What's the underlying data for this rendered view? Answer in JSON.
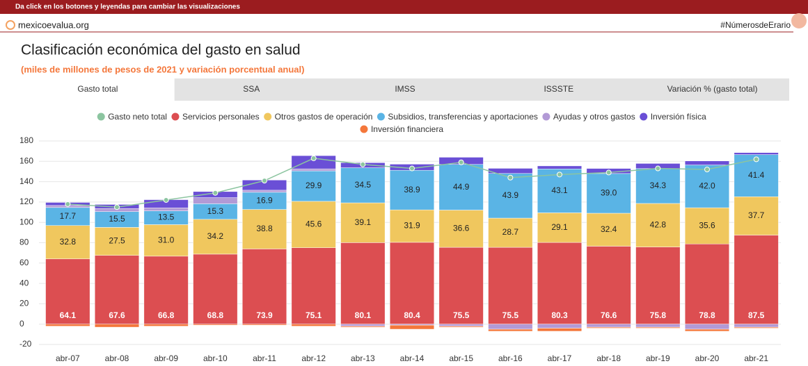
{
  "banner": "Da click en los botones y leyendas para cambiar las visualizaciones",
  "site": "mexicoevalua.org",
  "hashtag": "#NúmerosdeErario",
  "tabs": [
    "Gasto total",
    "SSA",
    "IMSS",
    "ISSSTE",
    "Variación % (gasto total)"
  ],
  "chart_data": {
    "type": "bar",
    "stacked": true,
    "title": "Clasificación económica del gasto en salud",
    "subtitle": "(miles de millones de pesos de 2021 y variación porcentual anual)",
    "categories": [
      "abr-07",
      "abr-08",
      "abr-09",
      "abr-10",
      "abr-11",
      "abr-12",
      "abr-13",
      "abr-14",
      "abr-15",
      "abr-16",
      "abr-17",
      "abr-18",
      "abr-19",
      "abr-20",
      "abr-21"
    ],
    "ylim": [
      -20,
      180
    ],
    "yticks": [
      -20,
      0,
      20,
      40,
      60,
      80,
      100,
      120,
      140,
      160,
      180
    ],
    "grid": true,
    "legend": "top",
    "series": [
      {
        "name": "Gasto neto total",
        "type": "line",
        "color": "#8cc5a0",
        "values": [
          118,
          115,
          122,
          129,
          141,
          163,
          157,
          153,
          159,
          144,
          147,
          149,
          153,
          152,
          162
        ]
      },
      {
        "name": "Servicios personales",
        "color": "#dc4e51",
        "values": [
          64.1,
          67.6,
          66.8,
          68.8,
          73.9,
          75.1,
          80.1,
          80.4,
          75.5,
          75.5,
          80.3,
          76.6,
          75.8,
          78.8,
          87.5
        ],
        "value_labels": [
          "64.1",
          "67.6",
          "66.8",
          "68.8",
          "73.9",
          "75.1",
          "80.1",
          "80.4",
          "75.5",
          "75.5",
          "80.3",
          "76.6",
          "75.8",
          "78.8",
          "87.5"
        ]
      },
      {
        "name": "Otros gastos de operación",
        "color": "#f0c75e",
        "values": [
          32.8,
          27.5,
          31.0,
          34.2,
          38.8,
          45.6,
          39.1,
          31.9,
          36.6,
          28.7,
          29.1,
          32.4,
          42.8,
          35.6,
          37.7
        ],
        "value_labels": [
          "32.8",
          "27.5",
          "31.0",
          "34.2",
          "38.8",
          "45.6",
          "39.1",
          "31.9",
          "36.6",
          "28.7",
          "29.1",
          "32.4",
          "42.8",
          "35.6",
          "37.7"
        ]
      },
      {
        "name": "Subsidios, transferencias y aportaciones",
        "color": "#5ab4e5",
        "values": [
          17.7,
          15.5,
          13.5,
          15.3,
          16.9,
          29.9,
          34.5,
          38.9,
          44.9,
          43.9,
          43.1,
          39.0,
          34.3,
          42.0,
          41.4
        ],
        "value_labels": [
          "17.7",
          "15.5",
          "13.5",
          "15.3",
          "16.9",
          "29.9",
          "34.5",
          "38.9",
          "44.9",
          "43.9",
          "43.1",
          "39.0",
          "34.3",
          "42.0",
          "41.4"
        ]
      },
      {
        "name": "Ayudas y otros gastos",
        "color": "#b29ad6",
        "values": [
          2,
          3,
          3,
          6,
          2,
          2,
          -2,
          -1,
          -2,
          -5,
          -4,
          -3,
          -3,
          -5,
          -3
        ]
      },
      {
        "name": "Inversión física",
        "color": "#6a4fd6",
        "values": [
          3,
          4,
          8,
          6,
          10,
          13,
          5,
          6,
          7,
          5,
          3,
          5,
          5,
          4,
          2
        ]
      },
      {
        "name": "Inversión financiera",
        "color": "#f4773b",
        "values": [
          -2,
          -3,
          -2,
          -1,
          -1,
          -2,
          -1,
          -4,
          -1,
          -2,
          -3,
          -1,
          -1,
          -2,
          -1
        ]
      }
    ]
  }
}
